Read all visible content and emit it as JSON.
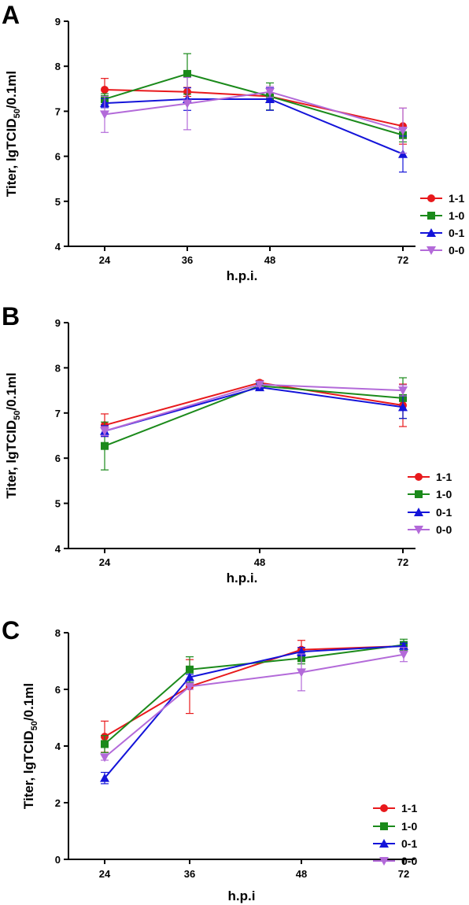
{
  "chart_data": [
    {
      "type": "line",
      "panel_label": "A",
      "xlabel": "h.p.i.",
      "ylabel": "Titer, lgTCID",
      "ylabel_sub": "50",
      "ylabel_suffix": "/0.1ml",
      "ylim": [
        4,
        9
      ],
      "yticks": [
        4,
        5,
        6,
        7,
        8,
        9
      ],
      "categories": [
        "24",
        "36",
        "48",
        "72"
      ],
      "legend": "right",
      "series": [
        {
          "name": "1-1",
          "color": "#e8191c",
          "marker": "circle",
          "values": [
            7.48,
            7.43,
            7.33,
            6.67
          ],
          "err": [
            0.25,
            0.1,
            0.08,
            0.4
          ]
        },
        {
          "name": "1-0",
          "color": "#1b8a1b",
          "marker": "square",
          "values": [
            7.27,
            7.83,
            7.33,
            6.47
          ],
          "err": [
            0.12,
            0.45,
            0.3,
            0.15
          ]
        },
        {
          "name": "0-1",
          "color": "#1414d9",
          "marker": "triangle-up",
          "values": [
            7.18,
            7.27,
            7.27,
            6.05
          ],
          "err": [
            0.1,
            0.25,
            0.25,
            0.4
          ]
        },
        {
          "name": "0-0",
          "color": "#b36ad9",
          "marker": "triangle-down",
          "values": [
            6.93,
            7.17,
            7.43,
            6.57
          ],
          "err": [
            0.4,
            0.58,
            0.12,
            0.5
          ]
        }
      ]
    },
    {
      "type": "line",
      "panel_label": "B",
      "xlabel": "h.p.i.",
      "ylabel": "Titer, lgTCID",
      "ylabel_sub": "50",
      "ylabel_suffix": "/0.1ml",
      "ylim": [
        4,
        9
      ],
      "yticks": [
        4,
        5,
        6,
        7,
        8,
        9
      ],
      "categories": [
        "24",
        "48",
        "72"
      ],
      "legend": "right",
      "series": [
        {
          "name": "1-1",
          "color": "#e8191c",
          "marker": "circle",
          "values": [
            6.73,
            7.67,
            7.17
          ],
          "err": [
            0.25,
            0.05,
            0.47
          ]
        },
        {
          "name": "1-0",
          "color": "#1b8a1b",
          "marker": "square",
          "values": [
            6.27,
            7.6,
            7.33
          ],
          "err": [
            0.53,
            0.07,
            0.45
          ]
        },
        {
          "name": "0-1",
          "color": "#1414d9",
          "marker": "triangle-up",
          "values": [
            6.6,
            7.57,
            7.13
          ],
          "err": [
            0.12,
            0.07,
            0.25
          ]
        },
        {
          "name": "0-0",
          "color": "#b36ad9",
          "marker": "triangle-down",
          "values": [
            6.6,
            7.63,
            7.5
          ],
          "err": [
            0.1,
            0.05,
            0.12
          ]
        }
      ]
    },
    {
      "type": "line",
      "panel_label": "C",
      "xlabel": "h.p.i",
      "ylabel": "Titer, lgTCID",
      "ylabel_sub": "50",
      "ylabel_suffix": "/0.1ml",
      "ylim": [
        0,
        8
      ],
      "yticks": [
        0,
        2,
        4,
        6,
        8
      ],
      "categories": [
        "24",
        "36",
        "48",
        "72"
      ],
      "legend": "right",
      "series": [
        {
          "name": "1-1",
          "color": "#e8191c",
          "marker": "circle",
          "values": [
            4.33,
            6.1,
            7.4,
            7.53
          ],
          "err": [
            0.55,
            0.95,
            0.33,
            0.1
          ]
        },
        {
          "name": "1-0",
          "color": "#1b8a1b",
          "marker": "square",
          "values": [
            4.07,
            6.7,
            7.1,
            7.57
          ],
          "err": [
            0.3,
            0.45,
            0.2,
            0.2
          ]
        },
        {
          "name": "0-1",
          "color": "#1414d9",
          "marker": "triangle-up",
          "values": [
            2.87,
            6.43,
            7.33,
            7.53
          ],
          "err": [
            0.2,
            0.1,
            0.15,
            0.1
          ]
        },
        {
          "name": "0-0",
          "color": "#b36ad9",
          "marker": "triangle-down",
          "values": [
            3.6,
            6.1,
            6.6,
            7.23
          ],
          "err": [
            0.1,
            0.1,
            0.65,
            0.25
          ]
        }
      ]
    }
  ]
}
